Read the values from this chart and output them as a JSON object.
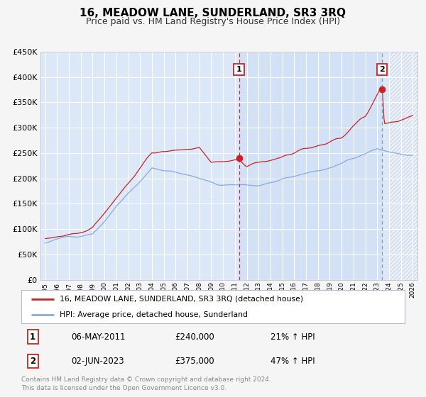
{
  "title": "16, MEADOW LANE, SUNDERLAND, SR3 3RQ",
  "subtitle": "Price paid vs. HM Land Registry's House Price Index (HPI)",
  "ylim": [
    0,
    450000
  ],
  "yticks": [
    0,
    50000,
    100000,
    150000,
    200000,
    250000,
    300000,
    350000,
    400000,
    450000
  ],
  "x_start_year": 1995,
  "x_end_year": 2026,
  "fig_bg_color": "#f5f5f5",
  "plot_bg_color": "#dce8f8",
  "grid_color": "#ffffff",
  "red_line_color": "#cc2222",
  "blue_line_color": "#88aadd",
  "transaction1_year": 2011.35,
  "transaction1_value": 240000,
  "transaction2_year": 2023.42,
  "transaction2_value": 375000,
  "legend_line1": "16, MEADOW LANE, SUNDERLAND, SR3 3RQ (detached house)",
  "legend_line2": "HPI: Average price, detached house, Sunderland",
  "table_row1_num": "1",
  "table_row1_date": "06-MAY-2011",
  "table_row1_price": "£240,000",
  "table_row1_hpi": "21% ↑ HPI",
  "table_row2_num": "2",
  "table_row2_date": "02-JUN-2023",
  "table_row2_price": "£375,000",
  "table_row2_hpi": "47% ↑ HPI",
  "footer": "Contains HM Land Registry data © Crown copyright and database right 2024.\nThis data is licensed under the Open Government Licence v3.0."
}
